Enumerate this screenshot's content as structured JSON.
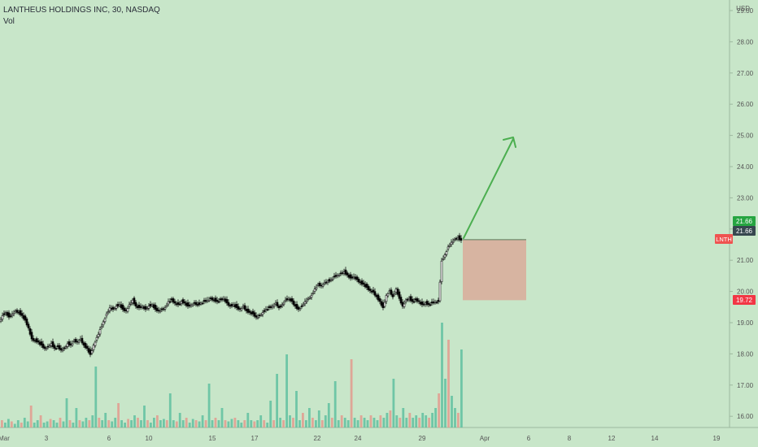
{
  "header": {
    "symbol_line": "LANTHEUS HOLDINGS INC, 30, NASDAQ",
    "volume_label": "Vol"
  },
  "price_axis": {
    "currency": "USD",
    "ticks": [
      "29.00",
      "28.00",
      "27.00",
      "26.00",
      "25.00",
      "24.00",
      "23.00",
      "22.00",
      "21.00",
      "20.00",
      "19.00",
      "18.00",
      "17.00",
      "16.00"
    ]
  },
  "badges": {
    "target_price": "21.66",
    "last_price": "21.66",
    "symbol": "LNTH",
    "stop_price": "19.72"
  },
  "time_axis": {
    "labels": [
      "Mar",
      "3",
      "6",
      "10",
      "15",
      "17",
      "22",
      "24",
      "29",
      "Apr",
      "6",
      "8",
      "12",
      "14",
      "19"
    ]
  },
  "colors": {
    "background": "#c8e6c9",
    "up_candle": "#ffffff",
    "down_candle": "#000000",
    "volume_up": "#5fbfa0",
    "volume_down": "#e39a8e",
    "arrow": "#4caf50",
    "risk_box": "#d9aa9a",
    "target_badge": "#26a541",
    "last_badge": "#37474f",
    "symbol_badge": "#ef5350",
    "stop_badge": "#f23645"
  },
  "chart_data": {
    "type": "candlestick",
    "title": "LANTHEUS HOLDINGS INC, 30, NASDAQ",
    "ylabel": "USD",
    "ylim": [
      15.6,
      29.5
    ],
    "grid": false,
    "close_path": [
      [
        0,
        19.05
      ],
      [
        4,
        19.25
      ],
      [
        8,
        19.35
      ],
      [
        12,
        19.2
      ],
      [
        16,
        19.3
      ],
      [
        20,
        19.4
      ],
      [
        24,
        19.35
      ],
      [
        28,
        19.25
      ],
      [
        32,
        19.1
      ],
      [
        36,
        18.85
      ],
      [
        40,
        18.5
      ],
      [
        44,
        18.45
      ],
      [
        48,
        18.4
      ],
      [
        52,
        18.3
      ],
      [
        56,
        18.2
      ],
      [
        60,
        18.25
      ],
      [
        64,
        18.35
      ],
      [
        68,
        18.2
      ],
      [
        72,
        18.25
      ],
      [
        76,
        18.15
      ],
      [
        80,
        18.2
      ],
      [
        84,
        18.35
      ],
      [
        88,
        18.3
      ],
      [
        92,
        18.45
      ],
      [
        96,
        18.4
      ],
      [
        100,
        18.5
      ],
      [
        104,
        18.3
      ],
      [
        108,
        18.2
      ],
      [
        112,
        18.0
      ],
      [
        116,
        18.3
      ],
      [
        120,
        18.55
      ],
      [
        124,
        18.8
      ],
      [
        128,
        19.05
      ],
      [
        132,
        19.3
      ],
      [
        136,
        19.5
      ],
      [
        140,
        19.45
      ],
      [
        144,
        19.55
      ],
      [
        148,
        19.6
      ],
      [
        152,
        19.45
      ],
      [
        156,
        19.4
      ],
      [
        160,
        19.6
      ],
      [
        164,
        19.75
      ],
      [
        168,
        19.55
      ],
      [
        172,
        19.5
      ],
      [
        176,
        19.55
      ],
      [
        180,
        19.45
      ],
      [
        184,
        19.55
      ],
      [
        188,
        19.6
      ],
      [
        192,
        19.45
      ],
      [
        196,
        19.4
      ],
      [
        200,
        19.45
      ],
      [
        204,
        19.5
      ],
      [
        208,
        19.7
      ],
      [
        212,
        19.75
      ],
      [
        216,
        19.65
      ],
      [
        220,
        19.6
      ],
      [
        224,
        19.7
      ],
      [
        228,
        19.65
      ],
      [
        232,
        19.55
      ],
      [
        236,
        19.6
      ],
      [
        240,
        19.65
      ],
      [
        244,
        19.6
      ],
      [
        248,
        19.65
      ],
      [
        252,
        19.7
      ],
      [
        256,
        19.75
      ],
      [
        260,
        19.8
      ],
      [
        264,
        19.75
      ],
      [
        268,
        19.7
      ],
      [
        272,
        19.75
      ],
      [
        276,
        19.8
      ],
      [
        280,
        19.65
      ],
      [
        284,
        19.55
      ],
      [
        288,
        19.6
      ],
      [
        292,
        19.5
      ],
      [
        296,
        19.45
      ],
      [
        300,
        19.55
      ],
      [
        304,
        19.4
      ],
      [
        308,
        19.35
      ],
      [
        312,
        19.3
      ],
      [
        316,
        19.2
      ],
      [
        320,
        19.25
      ],
      [
        324,
        19.35
      ],
      [
        328,
        19.45
      ],
      [
        332,
        19.5
      ],
      [
        336,
        19.55
      ],
      [
        340,
        19.65
      ],
      [
        344,
        19.5
      ],
      [
        348,
        19.6
      ],
      [
        352,
        19.75
      ],
      [
        356,
        19.8
      ],
      [
        360,
        19.7
      ],
      [
        364,
        19.55
      ],
      [
        368,
        19.45
      ],
      [
        372,
        19.55
      ],
      [
        376,
        19.7
      ],
      [
        380,
        19.8
      ],
      [
        384,
        19.9
      ],
      [
        388,
        20.1
      ],
      [
        392,
        20.25
      ],
      [
        396,
        20.2
      ],
      [
        400,
        20.3
      ],
      [
        404,
        20.35
      ],
      [
        408,
        20.4
      ],
      [
        412,
        20.5
      ],
      [
        416,
        20.55
      ],
      [
        420,
        20.6
      ],
      [
        424,
        20.65
      ],
      [
        428,
        20.55
      ],
      [
        432,
        20.45
      ],
      [
        436,
        20.5
      ],
      [
        440,
        20.4
      ],
      [
        444,
        20.3
      ],
      [
        448,
        20.25
      ],
      [
        452,
        20.15
      ],
      [
        456,
        20.05
      ],
      [
        460,
        20.0
      ],
      [
        464,
        19.85
      ],
      [
        468,
        19.7
      ],
      [
        472,
        19.5
      ],
      [
        476,
        19.9
      ],
      [
        480,
        20.05
      ],
      [
        484,
        19.85
      ],
      [
        488,
        20.1
      ],
      [
        492,
        19.8
      ],
      [
        496,
        19.55
      ],
      [
        500,
        19.75
      ],
      [
        504,
        19.8
      ],
      [
        508,
        19.7
      ],
      [
        512,
        19.75
      ],
      [
        516,
        19.7
      ],
      [
        520,
        19.6
      ],
      [
        524,
        19.65
      ],
      [
        528,
        19.6
      ],
      [
        532,
        19.65
      ],
      [
        536,
        19.7
      ],
      [
        540,
        19.7
      ],
      [
        544,
        21.0
      ],
      [
        548,
        21.2
      ],
      [
        552,
        21.45
      ],
      [
        556,
        21.6
      ],
      [
        560,
        21.7
      ],
      [
        564,
        21.75
      ],
      [
        568,
        21.66
      ]
    ],
    "volume": [
      0.3,
      0.2,
      0.35,
      0.25,
      0.15,
      0.3,
      0.2,
      0.4,
      0.25,
      0.9,
      0.2,
      0.3,
      0.5,
      0.2,
      0.25,
      0.35,
      0.3,
      0.2,
      0.4,
      0.25,
      1.2,
      0.3,
      0.2,
      0.8,
      0.3,
      0.25,
      0.4,
      0.3,
      0.5,
      2.5,
      0.4,
      0.3,
      0.6,
      0.3,
      0.25,
      0.4,
      1.0,
      0.3,
      0.2,
      0.35,
      0.3,
      0.5,
      0.4,
      0.3,
      0.9,
      0.3,
      0.2,
      0.4,
      0.5,
      0.3,
      0.35,
      0.3,
      1.4,
      0.3,
      0.25,
      0.6,
      0.3,
      0.4,
      0.2,
      0.35,
      0.3,
      0.25,
      0.5,
      0.3,
      1.8,
      0.3,
      0.4,
      0.3,
      0.8,
      0.3,
      0.25,
      0.35,
      0.4,
      0.3,
      0.2,
      0.3,
      0.6,
      0.3,
      0.25,
      0.3,
      0.5,
      0.3,
      0.2,
      1.1,
      0.3,
      2.2,
      0.4,
      0.3,
      3.0,
      0.5,
      0.4,
      1.5,
      0.3,
      0.6,
      0.3,
      0.8,
      0.4,
      0.3,
      0.7,
      0.3,
      0.5,
      1.0,
      0.4,
      1.9,
      0.3,
      0.5,
      0.4,
      0.3,
      2.8,
      0.4,
      0.3,
      0.5,
      0.4,
      0.3,
      0.5,
      0.4,
      0.3,
      0.5,
      0.4,
      0.6,
      0.7,
      2.0,
      0.5,
      0.4,
      0.8,
      0.4,
      0.6,
      0.4,
      0.5,
      0.4,
      0.6,
      0.5,
      0.4,
      0.6,
      0.8,
      1.4,
      4.3,
      2.0,
      3.6,
      1.3,
      0.8,
      0.6,
      3.2
    ]
  }
}
